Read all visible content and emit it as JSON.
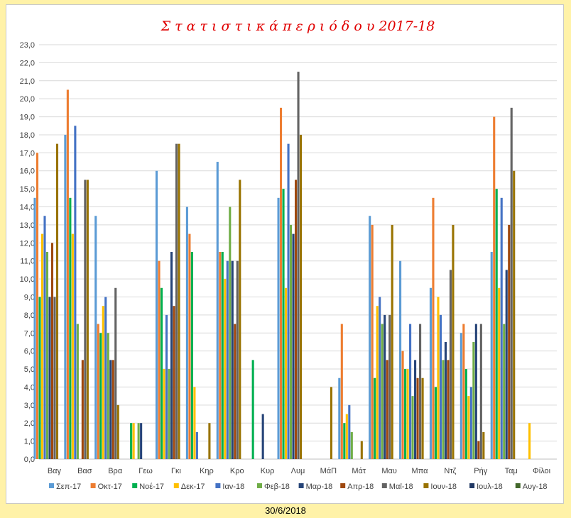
{
  "footer": {
    "date": "30/6/2018"
  },
  "chart_data": {
    "type": "bar",
    "title": "Σ τ α τ ι σ τ ι κ ά  π ε ρ ι ό δ ο υ 2017-18",
    "title_color": "#E00000",
    "xlabel": "",
    "ylabel": "",
    "ylim": [
      0,
      23
    ],
    "ytick_step": 1,
    "y_format_decimals": 1,
    "grid": true,
    "legend": "bottom",
    "categories": [
      "Βαγ",
      "Βασ",
      "Βρα",
      "Γεω",
      "Γκι",
      "Κηρ",
      "Κρο",
      "Κυρ",
      "Λυμ",
      "ΜάΠ",
      "Μάτ",
      "Μαυ",
      "Μπα",
      "Ντζ",
      "Ρήγ",
      "Ταμ",
      "Φίλοι"
    ],
    "series": [
      {
        "name": "Σεπ-17",
        "color": "#5B9BD5",
        "values": [
          14.5,
          18.0,
          13.5,
          0,
          16.0,
          14.0,
          16.5,
          0,
          14.5,
          0,
          4.5,
          13.5,
          11.0,
          9.5,
          7.0,
          11.5,
          0
        ]
      },
      {
        "name": "Οκτ-17",
        "color": "#ED7D31",
        "values": [
          17.0,
          20.5,
          7.5,
          0,
          11.0,
          12.5,
          11.5,
          0,
          19.5,
          0,
          7.5,
          13.0,
          6.0,
          14.5,
          7.5,
          19.0,
          0
        ]
      },
      {
        "name": "Νοέ-17",
        "color": "#00B050",
        "values": [
          9.0,
          14.5,
          7.0,
          2.0,
          9.5,
          11.5,
          11.5,
          5.5,
          15.0,
          0,
          2.0,
          4.5,
          5.0,
          4.0,
          5.0,
          15.0,
          0
        ]
      },
      {
        "name": "Δεκ-17",
        "color": "#FFC000",
        "values": [
          12.5,
          12.5,
          8.5,
          2.0,
          5.0,
          4.0,
          10.0,
          0,
          9.5,
          0,
          2.5,
          8.5,
          5.0,
          9.0,
          3.5,
          9.5,
          2.0
        ]
      },
      {
        "name": "Ιαν-18",
        "color": "#4472C4",
        "values": [
          13.5,
          18.5,
          9.0,
          0,
          8.0,
          1.5,
          11.0,
          0,
          17.5,
          0,
          3.0,
          9.0,
          7.5,
          8.0,
          4.0,
          14.5,
          0
        ]
      },
      {
        "name": "Φεβ-18",
        "color": "#70AD47",
        "values": [
          11.5,
          7.5,
          7.0,
          2.0,
          5.0,
          0,
          14.0,
          0,
          13.0,
          0,
          1.5,
          7.5,
          3.5,
          5.5,
          6.5,
          7.5,
          0
        ]
      },
      {
        "name": "Μαρ-18",
        "color": "#264478",
        "values": [
          9.0,
          0,
          5.5,
          2.0,
          11.5,
          0,
          11.0,
          2.5,
          12.5,
          0,
          0,
          8.0,
          5.5,
          6.5,
          7.5,
          10.5,
          0
        ]
      },
      {
        "name": "Απρ-18",
        "color": "#9E480E",
        "values": [
          12.0,
          5.5,
          5.5,
          0,
          8.5,
          0,
          7.5,
          0,
          15.5,
          0,
          0,
          5.5,
          4.5,
          5.5,
          1.0,
          13.0,
          0
        ]
      },
      {
        "name": "Μαϊ-18",
        "color": "#636363",
        "values": [
          9.0,
          15.5,
          9.5,
          0,
          17.5,
          0,
          11.0,
          0,
          21.5,
          0,
          0,
          8.0,
          7.5,
          10.5,
          7.5,
          19.5,
          0
        ]
      },
      {
        "name": "Ιουν-18",
        "color": "#997300",
        "values": [
          17.5,
          15.5,
          3.0,
          0,
          17.5,
          2.0,
          15.5,
          0,
          18.0,
          4.0,
          1.0,
          13.0,
          4.5,
          13.0,
          1.5,
          16.0,
          0
        ]
      },
      {
        "name": "Ιουλ-18",
        "color": "#203864",
        "values": [
          0,
          0,
          0,
          0,
          0,
          0,
          0,
          0,
          0,
          0,
          0,
          0,
          0,
          0,
          0,
          0,
          0
        ]
      },
      {
        "name": "Αυγ-18",
        "color": "#43682B",
        "values": [
          0,
          0,
          0,
          0,
          0,
          0,
          0,
          0,
          0,
          0,
          0,
          0,
          0,
          0,
          0,
          0,
          0
        ]
      }
    ]
  }
}
